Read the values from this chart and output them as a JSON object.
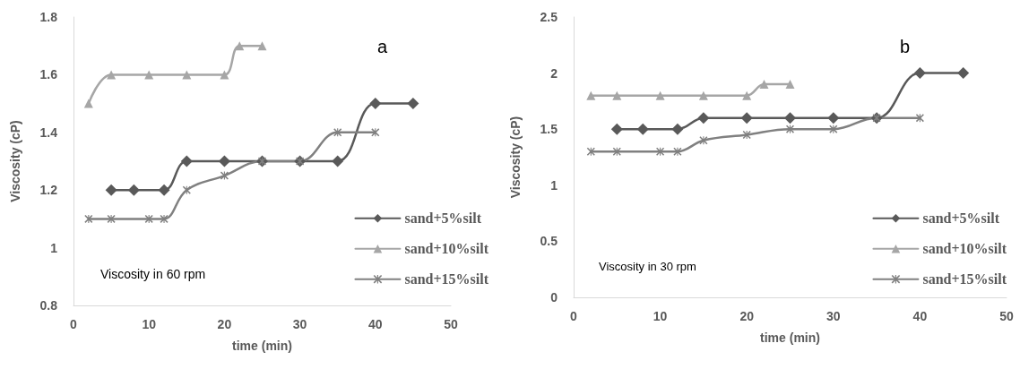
{
  "chart_data": [
    {
      "type": "line",
      "xlabel": "time (min)",
      "ylabel": "Viscosity (cP)",
      "xlim": [
        0,
        50
      ],
      "xticks": [
        0,
        10,
        20,
        30,
        40,
        50
      ],
      "ylim": [
        0.8,
        1.8
      ],
      "yticks": [
        0.8,
        1,
        1.2,
        1.4,
        1.6,
        1.8
      ],
      "grid": false,
      "legend": "right",
      "annotations": [
        "a",
        "Viscosity in 60 rpm"
      ],
      "series": [
        {
          "name": "sand+5%silt",
          "color": "#595959",
          "marker": "diamond",
          "x": [
            5,
            8,
            12,
            15,
            20,
            25,
            30,
            35,
            40,
            45
          ],
          "values": [
            1.2,
            1.2,
            1.2,
            1.3,
            1.3,
            1.3,
            1.3,
            1.3,
            1.5,
            1.5
          ]
        },
        {
          "name": "sand+10%silt",
          "color": "#a6a6a6",
          "marker": "triangle",
          "x": [
            2,
            5,
            10,
            15,
            20,
            22,
            25
          ],
          "values": [
            1.5,
            1.6,
            1.6,
            1.6,
            1.6,
            1.7,
            1.7
          ]
        },
        {
          "name": "sand+15%silt",
          "color": "#808080",
          "marker": "cross",
          "x": [
            2,
            5,
            10,
            12,
            15,
            20,
            25,
            30,
            35,
            40
          ],
          "values": [
            1.1,
            1.1,
            1.1,
            1.1,
            1.2,
            1.25,
            1.3,
            1.3,
            1.4,
            1.4
          ]
        }
      ]
    },
    {
      "type": "line",
      "xlabel": "time (min)",
      "ylabel": "Viscosity (cP)",
      "xlim": [
        0,
        50
      ],
      "xticks": [
        0,
        10,
        20,
        30,
        40,
        50
      ],
      "ylim": [
        0,
        2.5
      ],
      "yticks": [
        0,
        0.5,
        1,
        1.5,
        2,
        2.5
      ],
      "grid": false,
      "legend": "right",
      "annotations": [
        "b",
        "Viscosity in 30 rpm"
      ],
      "series": [
        {
          "name": "sand+5%silt",
          "color": "#595959",
          "marker": "diamond",
          "x": [
            5,
            8,
            12,
            15,
            20,
            25,
            30,
            35,
            40,
            45
          ],
          "values": [
            1.5,
            1.5,
            1.5,
            1.6,
            1.6,
            1.6,
            1.6,
            1.6,
            2,
            2
          ]
        },
        {
          "name": "sand+10%silt",
          "color": "#a6a6a6",
          "marker": "triangle",
          "x": [
            2,
            5,
            10,
            15,
            20,
            22,
            25
          ],
          "values": [
            1.8,
            1.8,
            1.8,
            1.8,
            1.8,
            1.9,
            1.9
          ]
        },
        {
          "name": "sand+15%silt",
          "color": "#808080",
          "marker": "cross",
          "x": [
            2,
            5,
            10,
            12,
            15,
            20,
            25,
            30,
            35,
            40
          ],
          "values": [
            1.3,
            1.3,
            1.3,
            1.3,
            1.4,
            1.45,
            1.5,
            1.5,
            1.6,
            1.6
          ]
        }
      ]
    }
  ]
}
